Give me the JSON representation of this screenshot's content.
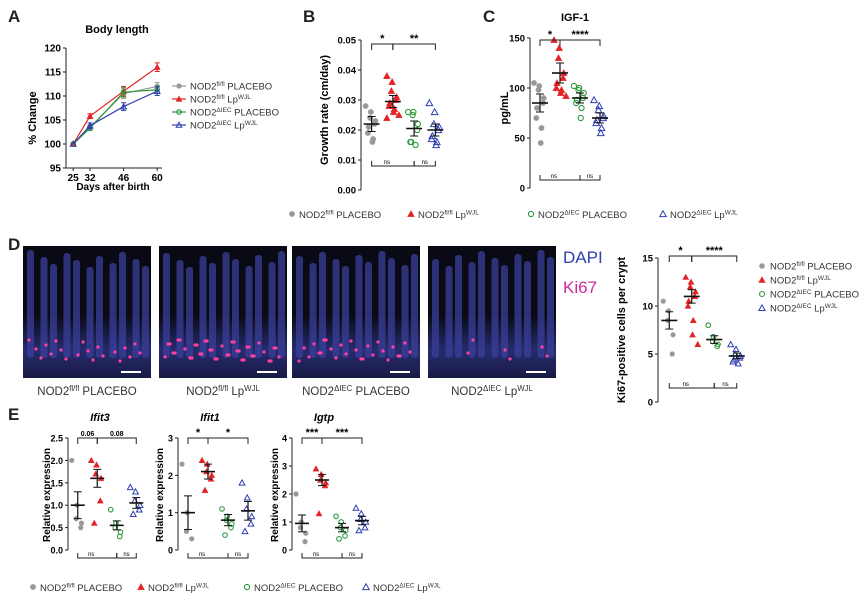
{
  "colors": {
    "placebo_fl": "#999999",
    "lp_fl": "#e32326",
    "placebo_iec": "#2e9a3c",
    "lp_iec": "#2f3fb0"
  },
  "panels": {
    "A": "A",
    "B": "B",
    "C": "C",
    "D": "D",
    "E": "E"
  },
  "common_legend": [
    {
      "sym": "circle",
      "base": "NOD2",
      "sup": "fl/fl",
      "suffix": " PLACEBO",
      "suffix_sup": ""
    },
    {
      "sym": "triangle",
      "base": "NOD2",
      "sup": "fl/fl",
      "suffix": " Lp",
      "suffix_sup": "WJL"
    },
    {
      "sym": "open-circle",
      "base": "NOD2",
      "sup": "ΔIEC",
      "suffix": " PLACEBO",
      "suffix_sup": ""
    },
    {
      "sym": "open-triangle",
      "base": "NOD2",
      "sup": "ΔIEC",
      "suffix": " Lp",
      "suffix_sup": "WJL"
    }
  ],
  "image_labels": [
    {
      "base": "NOD2",
      "sup": "fl/fl",
      "suffix": " PLACEBO",
      "suffix_sup": ""
    },
    {
      "base": "NOD2",
      "sup": "fl/fl",
      "suffix": " Lp",
      "suffix_sup": "WJL"
    },
    {
      "base": "NOD2",
      "sup": "ΔIEC",
      "suffix": " PLACEBO",
      "suffix_sup": ""
    },
    {
      "base": "NOD2",
      "sup": "ΔIEC",
      "suffix": " Lp",
      "suffix_sup": "WJL"
    }
  ],
  "stain_labels": {
    "dapi": "DAPI",
    "ki67": "Ki67"
  },
  "chart_data": [
    {
      "id": "A",
      "type": "line",
      "title": "Body length",
      "xlabel": "Days after birth",
      "ylabel": "% Change",
      "x": [
        25,
        32,
        46,
        60
      ],
      "xticks": [
        25,
        32,
        46,
        60
      ],
      "xlim": [
        22,
        62
      ],
      "ylim": [
        95,
        120
      ],
      "yticks": [
        95,
        100,
        105,
        110,
        115,
        120
      ],
      "legend_position": "right",
      "series": [
        {
          "name_base": "NOD2",
          "name_sup": "fl/fl",
          "name_suffix": " PLACEBO",
          "name_suffix_sup": "",
          "color": "#999999",
          "marker": "circle",
          "values": [
            100,
            103.5,
            110.5,
            112
          ],
          "err": [
            0,
            0.5,
            1,
            0.8
          ]
        },
        {
          "name_base": "NOD2",
          "name_sup": "fl/fl",
          "name_suffix": " Lp",
          "name_suffix_sup": "WJL",
          "color": "#e32326",
          "marker": "triangle",
          "values": [
            100,
            105.8,
            111,
            116
          ],
          "err": [
            0,
            0.5,
            1,
            0.9
          ]
        },
        {
          "name_base": "NOD2",
          "name_sup": "ΔIEC",
          "name_suffix": " PLACEBO",
          "name_suffix_sup": "",
          "color": "#2e9a3c",
          "marker": "open-circle",
          "values": [
            100,
            103.3,
            110.8,
            111.3
          ],
          "err": [
            0,
            0.5,
            1,
            0.8
          ]
        },
        {
          "name_base": "NOD2",
          "name_sup": "ΔIEC",
          "name_suffix": " Lp",
          "name_suffix_sup": "WJL",
          "color": "#2f3fb0",
          "marker": "open-triangle",
          "values": [
            100,
            103.8,
            107.8,
            111
          ],
          "err": [
            0,
            0.6,
            0.8,
            0.9
          ]
        }
      ]
    },
    {
      "id": "B",
      "type": "scatter",
      "title": "",
      "ylabel": "Growth rate (cm/day)",
      "ylim": [
        0,
        0.05
      ],
      "yticks": [
        "0.00",
        "0.01",
        "0.02",
        "0.03",
        "0.04",
        "0.05"
      ],
      "ytick_values": [
        0,
        0.01,
        0.02,
        0.03,
        0.04,
        0.05
      ],
      "groups": [
        {
          "marker": "circle",
          "color": "#999999",
          "mean": 0.022,
          "sem": 0.0025,
          "points": [
            0.028,
            0.026,
            0.024,
            0.023,
            0.022,
            0.021,
            0.019,
            0.017,
            0.016
          ]
        },
        {
          "marker": "triangle",
          "color": "#e32326",
          "mean": 0.0295,
          "sem": 0.002,
          "points": [
            0.038,
            0.036,
            0.033,
            0.031,
            0.03,
            0.029,
            0.028,
            0.027,
            0.026,
            0.025,
            0.024
          ]
        },
        {
          "marker": "open-circle",
          "color": "#2e9a3c",
          "mean": 0.0205,
          "sem": 0.0025,
          "points": [
            0.026,
            0.026,
            0.025,
            0.022,
            0.02,
            0.016,
            0.016,
            0.015
          ]
        },
        {
          "marker": "open-triangle",
          "color": "#2f3fb0",
          "mean": 0.02,
          "sem": 0.002,
          "points": [
            0.029,
            0.026,
            0.022,
            0.021,
            0.02,
            0.018,
            0.017,
            0.016,
            0.015
          ]
        }
      ],
      "sig_top": [
        {
          "from": 0,
          "to": 1,
          "label": "*"
        },
        {
          "from": 1,
          "to": 3,
          "label": "**"
        }
      ],
      "sig_bottom": [
        {
          "from": 0,
          "to": 2,
          "label": "ns"
        },
        {
          "from": 2,
          "to": 3,
          "label": "ns"
        }
      ]
    },
    {
      "id": "C",
      "type": "scatter",
      "title": "IGF-1",
      "ylabel": "pg/mL",
      "ylim": [
        0,
        150
      ],
      "yticks": [
        "0",
        "50",
        "100",
        "150"
      ],
      "ytick_values": [
        0,
        50,
        100,
        150
      ],
      "groups": [
        {
          "marker": "circle",
          "color": "#999999",
          "mean": 85,
          "sem": 9,
          "points": [
            105,
            102,
            98,
            90,
            85,
            80,
            70,
            60,
            45
          ]
        },
        {
          "marker": "triangle",
          "color": "#e32326",
          "mean": 115,
          "sem": 10,
          "points": [
            148,
            140,
            130,
            115,
            110,
            105,
            100,
            98,
            95,
            92
          ]
        },
        {
          "marker": "open-circle",
          "color": "#2e9a3c",
          "mean": 90,
          "sem": 5,
          "points": [
            102,
            100,
            98,
            95,
            90,
            88,
            85,
            80,
            70
          ]
        },
        {
          "marker": "open-triangle",
          "color": "#2f3fb0",
          "mean": 70,
          "sem": 5,
          "points": [
            88,
            82,
            78,
            72,
            70,
            68,
            65,
            60,
            55
          ]
        }
      ],
      "sig_top": [
        {
          "from": 0,
          "to": 1,
          "label": "*"
        },
        {
          "from": 1,
          "to": 3,
          "label": "****"
        }
      ],
      "sig_bottom": [
        {
          "from": 0,
          "to": 2,
          "label": "ns"
        },
        {
          "from": 2,
          "to": 3,
          "label": "ns"
        }
      ]
    },
    {
      "id": "D",
      "type": "scatter",
      "title": "",
      "ylabel": "Ki67-positive cells per crypt",
      "ylim": [
        0,
        15
      ],
      "yticks": [
        "0",
        "5",
        "10",
        "15"
      ],
      "ytick_values": [
        0,
        5,
        10,
        15
      ],
      "groups": [
        {
          "marker": "circle",
          "color": "#999999",
          "mean": 8.5,
          "sem": 0.9,
          "points": [
            10.5,
            9.5,
            8.5,
            7,
            5
          ]
        },
        {
          "marker": "triangle",
          "color": "#e32326",
          "mean": 11,
          "sem": 0.7,
          "points": [
            13,
            12.5,
            12,
            11.5,
            11,
            10.5,
            10,
            8.5,
            7,
            6
          ]
        },
        {
          "marker": "open-circle",
          "color": "#2e9a3c",
          "mean": 6.5,
          "sem": 0.4,
          "points": [
            8,
            6.8,
            6.3,
            6,
            5.8
          ]
        },
        {
          "marker": "open-triangle",
          "color": "#2f3fb0",
          "mean": 4.8,
          "sem": 0.3,
          "points": [
            6,
            5.5,
            5,
            4.8,
            4.6,
            4.4,
            4.2,
            4
          ]
        }
      ],
      "sig_top": [
        {
          "from": 0,
          "to": 1,
          "label": "*"
        },
        {
          "from": 1,
          "to": 3,
          "label": "****"
        }
      ],
      "sig_bottom": [
        {
          "from": 0,
          "to": 2,
          "label": "ns"
        },
        {
          "from": 2,
          "to": 3,
          "label": "ns"
        }
      ],
      "legend": [
        {
          "base": "NOD2",
          "sup": "fl/fl",
          "suffix": " PLACEBO",
          "suffix_sup": ""
        },
        {
          "base": "NOD2",
          "sup": "fl/fl",
          "suffix": " Lp",
          "suffix_sup": "WJL"
        },
        {
          "base": "NOD2",
          "sup": "ΔIEC",
          "suffix": " PLACEBO",
          "suffix_sup": ""
        },
        {
          "base": "NOD2",
          "sup": "ΔIEC",
          "suffix": " Lp",
          "suffix_sup": "WJL"
        }
      ]
    },
    {
      "id": "E1",
      "type": "scatter",
      "title": "Ifit3",
      "ylabel": "Relative expression",
      "ylim": [
        0,
        2.5
      ],
      "yticks": [
        "0.0",
        "0.5",
        "1.0",
        "1.5",
        "2.0",
        "2.5"
      ],
      "ytick_values": [
        0,
        0.5,
        1,
        1.5,
        2,
        2.5
      ],
      "groups": [
        {
          "marker": "circle",
          "color": "#999999",
          "mean": 1.0,
          "sem": 0.3,
          "points": [
            2.0,
            1.0,
            0.7,
            0.6,
            0.5
          ]
        },
        {
          "marker": "triangle",
          "color": "#e32326",
          "mean": 1.6,
          "sem": 0.2,
          "points": [
            2.0,
            1.9,
            1.7,
            1.6,
            1.1,
            0.6
          ]
        },
        {
          "marker": "open-circle",
          "color": "#2e9a3c",
          "mean": 0.55,
          "sem": 0.1,
          "points": [
            0.9,
            0.6,
            0.5,
            0.4,
            0.3
          ]
        },
        {
          "marker": "open-triangle",
          "color": "#2f3fb0",
          "mean": 1.05,
          "sem": 0.12,
          "points": [
            1.4,
            1.3,
            1.1,
            1.0,
            0.9,
            0.8
          ]
        }
      ],
      "sig_top": [
        {
          "from": 0,
          "to": 1,
          "label": "0.06"
        },
        {
          "from": 1,
          "to": 3,
          "label": "0.08"
        }
      ],
      "sig_bottom": [
        {
          "from": 0,
          "to": 2,
          "label": "ns"
        },
        {
          "from": 2,
          "to": 3,
          "label": "ns"
        }
      ]
    },
    {
      "id": "E2",
      "type": "scatter",
      "title": "Ifit1",
      "ylabel": "Relative expression",
      "ylim": [
        0,
        3
      ],
      "yticks": [
        "0",
        "1",
        "2",
        "3"
      ],
      "ytick_values": [
        0,
        1,
        2,
        3
      ],
      "groups": [
        {
          "marker": "circle",
          "color": "#999999",
          "mean": 1.0,
          "sem": 0.45,
          "points": [
            2.3,
            1.0,
            0.5,
            0.3
          ]
        },
        {
          "marker": "triangle",
          "color": "#e32326",
          "mean": 2.1,
          "sem": 0.2,
          "points": [
            2.4,
            2.3,
            2.1,
            2.0,
            1.9,
            1.6
          ]
        },
        {
          "marker": "open-circle",
          "color": "#2e9a3c",
          "mean": 0.8,
          "sem": 0.15,
          "points": [
            1.1,
            0.9,
            0.8,
            0.7,
            0.6,
            0.4
          ]
        },
        {
          "marker": "open-triangle",
          "color": "#2f3fb0",
          "mean": 1.05,
          "sem": 0.25,
          "points": [
            1.8,
            1.4,
            1.1,
            0.9,
            0.7,
            0.5
          ]
        }
      ],
      "sig_top": [
        {
          "from": 0,
          "to": 1,
          "label": "*"
        },
        {
          "from": 1,
          "to": 3,
          "label": "*"
        }
      ],
      "sig_bottom": [
        {
          "from": 0,
          "to": 2,
          "label": "ns"
        },
        {
          "from": 2,
          "to": 3,
          "label": "ns"
        }
      ]
    },
    {
      "id": "E3",
      "type": "scatter",
      "title": "Igtp",
      "ylabel": "Relative expression",
      "ylim": [
        0,
        4
      ],
      "yticks": [
        "0",
        "1",
        "2",
        "3",
        "4"
      ],
      "ytick_values": [
        0,
        1,
        2,
        3,
        4
      ],
      "groups": [
        {
          "marker": "circle",
          "color": "#999999",
          "mean": 0.95,
          "sem": 0.3,
          "points": [
            2.0,
            1.0,
            0.8,
            0.6,
            0.3
          ]
        },
        {
          "marker": "triangle",
          "color": "#e32326",
          "mean": 2.5,
          "sem": 0.2,
          "points": [
            2.9,
            2.7,
            2.5,
            2.4,
            2.3,
            1.3
          ]
        },
        {
          "marker": "open-circle",
          "color": "#2e9a3c",
          "mean": 0.8,
          "sem": 0.15,
          "points": [
            1.2,
            1.0,
            0.8,
            0.7,
            0.5,
            0.4
          ]
        },
        {
          "marker": "open-triangle",
          "color": "#2f3fb0",
          "mean": 1.05,
          "sem": 0.15,
          "points": [
            1.5,
            1.3,
            1.1,
            1.0,
            0.8,
            0.7
          ]
        }
      ],
      "sig_top": [
        {
          "from": 0,
          "to": 1,
          "label": "***"
        },
        {
          "from": 1,
          "to": 3,
          "label": "***"
        }
      ],
      "sig_bottom": [
        {
          "from": 0,
          "to": 2,
          "label": "ns"
        },
        {
          "from": 2,
          "to": 3,
          "label": "ns"
        }
      ]
    }
  ]
}
